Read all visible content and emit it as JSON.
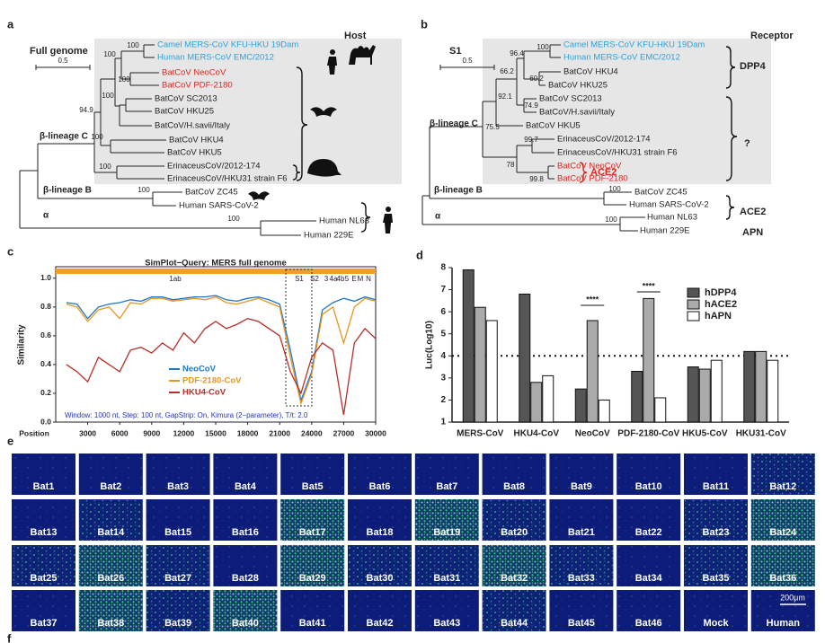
{
  "panel_labels": [
    "a",
    "b",
    "c",
    "d",
    "e",
    "f"
  ],
  "tree_a": {
    "title": "Full genome",
    "scale": "0.5",
    "header": "Host",
    "leaves": [
      {
        "label": "Camel MERS-CoV KFU-HKU 19Dam",
        "color": "#29a3dd"
      },
      {
        "label": "Human MERS-CoV EMC/2012",
        "color": "#29a3dd"
      },
      {
        "label": "BatCoV NeoCoV",
        "color": "#e0261f"
      },
      {
        "label": "BatCoV PDF-2180",
        "color": "#e0261f"
      },
      {
        "label": "BatCoV SC2013",
        "color": "#222222"
      },
      {
        "label": "BatCoV HKU25",
        "color": "#222222"
      },
      {
        "label": "BatCoV/H.savii/Italy",
        "color": "#222222"
      },
      {
        "label": "BatCoV HKU4",
        "color": "#222222"
      },
      {
        "label": "BatCoV HKU5",
        "color": "#222222"
      },
      {
        "label": "ErinaceusCoV/2012-174",
        "color": "#222222"
      },
      {
        "label": "ErinaceusCoV/HKU31 strain F6",
        "color": "#222222"
      },
      {
        "label": "BatCoV ZC45",
        "color": "#222222"
      },
      {
        "label": "Human SARS-CoV-2",
        "color": "#222222"
      },
      {
        "label": "Human NL63",
        "color": "#222222"
      },
      {
        "label": "Human 229E",
        "color": "#222222"
      }
    ],
    "support": [
      100,
      100,
      100,
      100,
      94.9,
      100,
      100,
      100,
      100
    ],
    "clades": [
      "β-lineage C",
      "β-lineage B",
      "α"
    ]
  },
  "tree_b": {
    "title": "S1",
    "scale": "0.5",
    "header": "Receptor",
    "leaves": [
      {
        "label": "Camel MERS-CoV KFU-HKU 19Dam",
        "color": "#29a3dd"
      },
      {
        "label": "Human MERS-CoV EMC/2012",
        "color": "#29a3dd"
      },
      {
        "label": "BatCoV HKU4",
        "color": "#222222"
      },
      {
        "label": "BatCoV HKU25",
        "color": "#222222"
      },
      {
        "label": "BatCoV SC2013",
        "color": "#222222"
      },
      {
        "label": "BatCoV/H.savii/Italy",
        "color": "#222222"
      },
      {
        "label": "BatCoV HKU5",
        "color": "#222222"
      },
      {
        "label": "ErinaceusCoV/2012-174",
        "color": "#222222"
      },
      {
        "label": "ErinaceusCoV/HKU31 strain F6",
        "color": "#222222"
      },
      {
        "label": "BatCoV NeoCoV",
        "color": "#e0261f"
      },
      {
        "label": "BatCoV PDF-2180",
        "color": "#e0261f"
      },
      {
        "label": "BatCoV ZC45",
        "color": "#222222"
      },
      {
        "label": "Human SARS-CoV-2",
        "color": "#222222"
      },
      {
        "label": "Human NL63",
        "color": "#222222"
      },
      {
        "label": "Human 229E",
        "color": "#222222"
      }
    ],
    "support": [
      100,
      96.4,
      66.2,
      60.2,
      92.1,
      74.9,
      75.5,
      99.7,
      78,
      99.8,
      100,
      100
    ],
    "clades": [
      "β-lineage C",
      "β-lineage B",
      "α"
    ],
    "receptors": [
      {
        "label": "DPP4",
        "color": "#222222"
      },
      {
        "label": "?",
        "color": "#222222"
      },
      {
        "label": "ACE2",
        "color": "#e0261f"
      },
      {
        "label": "ACE2",
        "color": "#222222"
      },
      {
        "label": "APN",
        "color": "#222222"
      }
    ]
  },
  "chart_data": [
    {
      "type": "line",
      "title": "SimPlot−Query: MERS full genome",
      "x_label": "Position",
      "y_label": "Similarity",
      "x": [
        1000,
        2000,
        3000,
        4000,
        5000,
        6000,
        7000,
        8000,
        9000,
        10000,
        11000,
        12000,
        13000,
        14000,
        15000,
        16000,
        17000,
        18000,
        19000,
        20000,
        21000,
        22000,
        23000,
        24000,
        25000,
        26000,
        27000,
        28000,
        29000,
        30000
      ],
      "series": [
        {
          "name": "NeoCoV",
          "color": "#1f77c4",
          "values": [
            0.83,
            0.82,
            0.72,
            0.8,
            0.82,
            0.83,
            0.85,
            0.84,
            0.87,
            0.87,
            0.85,
            0.86,
            0.87,
            0.87,
            0.88,
            0.85,
            0.84,
            0.86,
            0.87,
            0.85,
            0.82,
            0.5,
            0.15,
            0.35,
            0.78,
            0.83,
            0.86,
            0.84,
            0.87,
            0.85
          ]
        },
        {
          "name": "PDF-2180-CoV",
          "color": "#e8961e",
          "values": [
            0.82,
            0.8,
            0.7,
            0.78,
            0.8,
            0.72,
            0.83,
            0.82,
            0.86,
            0.86,
            0.84,
            0.85,
            0.86,
            0.85,
            0.87,
            0.83,
            0.82,
            0.84,
            0.86,
            0.83,
            0.8,
            0.45,
            0.13,
            0.33,
            0.75,
            0.8,
            0.55,
            0.8,
            0.86,
            0.84
          ]
        },
        {
          "name": "HKU4-CoV",
          "color": "#b5302a",
          "values": [
            0.4,
            0.35,
            0.28,
            0.45,
            0.4,
            0.35,
            0.5,
            0.52,
            0.48,
            0.55,
            0.5,
            0.62,
            0.55,
            0.65,
            0.7,
            0.65,
            0.68,
            0.72,
            0.7,
            0.65,
            0.6,
            0.35,
            0.2,
            0.45,
            0.55,
            0.5,
            0.05,
            0.55,
            0.65,
            0.58
          ]
        }
      ],
      "xlim": [
        0,
        30000
      ],
      "ylim": [
        0,
        1.08
      ],
      "xticks": [
        3000,
        6000,
        9000,
        12000,
        15000,
        18000,
        21000,
        24000,
        27000,
        30000
      ],
      "yticks": [
        {
          "value": 0,
          "label": "0.0"
        },
        0.2,
        0.4,
        0.6,
        0.8,
        {
          "value": 1,
          "label": "1.0"
        }
      ],
      "genes": [
        "1ab",
        "S1",
        "S2",
        "3",
        "4a",
        "4b",
        "5",
        "E",
        "M",
        "N"
      ],
      "gene_color": "#f0a020",
      "annotation": "Window: 1000 nt, Step: 100 nt, GapStrip: On, Kimura (2−parameter), T/t: 2.0"
    },
    {
      "type": "bar",
      "y_label": "Luc(Log10)",
      "categories": [
        "MERS-CoV",
        "HKU4-CoV",
        "NeoCoV",
        "PDF-2180-CoV",
        "HKU5-CoV",
        "HKU31-CoV"
      ],
      "series": [
        {
          "name": "hDPP4",
          "color": "#555555",
          "values": [
            7.9,
            6.8,
            2.5,
            3.3,
            3.5,
            4.2
          ]
        },
        {
          "name": "hACE2",
          "color": "#aaaaaa",
          "values": [
            6.2,
            2.8,
            5.6,
            6.6,
            3.4,
            4.2
          ]
        },
        {
          "name": "hAPN",
          "color": "#ffffff",
          "values": [
            5.6,
            3.1,
            2.0,
            2.1,
            3.8,
            3.8
          ]
        }
      ],
      "ylim": [
        1,
        8
      ],
      "yticks": [
        1,
        2,
        3,
        4,
        5,
        6,
        7,
        8
      ],
      "threshold": 4,
      "significance": [
        "****",
        "****"
      ]
    }
  ],
  "grid_e": {
    "tiles": [
      "Bat1",
      "Bat2",
      "Bat3",
      "Bat4",
      "Bat5",
      "Bat6",
      "Bat7",
      "Bat8",
      "Bat9",
      "Bat10",
      "Bat11",
      "Bat12",
      "Bat13",
      "Bat14",
      "Bat15",
      "Bat16",
      "Bat17",
      "Bat18",
      "Bat19",
      "Bat20",
      "Bat21",
      "Bat22",
      "Bat23",
      "Bat24",
      "Bat25",
      "Bat26",
      "Bat27",
      "Bat28",
      "Bat29",
      "Bat30",
      "Bat31",
      "Bat32",
      "Bat33",
      "Bat34",
      "Bat35",
      "Bat36",
      "Bat37",
      "Bat38",
      "Bat39",
      "Bat40",
      "Bat41",
      "Bat42",
      "Bat43",
      "Bat44",
      "Bat45",
      "Bat46",
      "Mock",
      "Human"
    ],
    "scale_bar": "200μm"
  }
}
